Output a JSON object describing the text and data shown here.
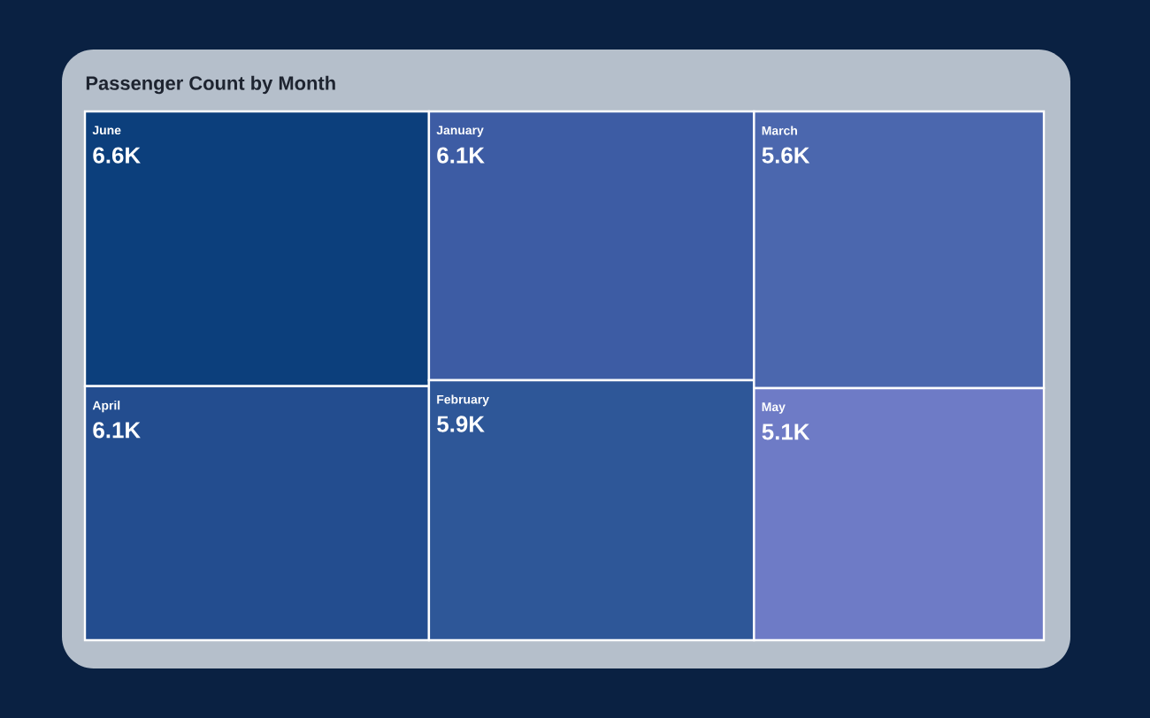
{
  "chart_data": {
    "type": "other",
    "title": "Passenger Count by Month",
    "categories": [
      "June",
      "April",
      "January",
      "February",
      "March",
      "May"
    ],
    "values": [
      6600,
      6100,
      6100,
      5900,
      5600,
      5100
    ],
    "value_labels": [
      "6.6K",
      "6.1K",
      "6.1K",
      "5.9K",
      "5.6K",
      "5.1K"
    ],
    "colors": [
      "#0c3f7c",
      "#234d8f",
      "#3d5ca4",
      "#2e5798",
      "#4b67ae",
      "#6e7bc6"
    ]
  }
}
